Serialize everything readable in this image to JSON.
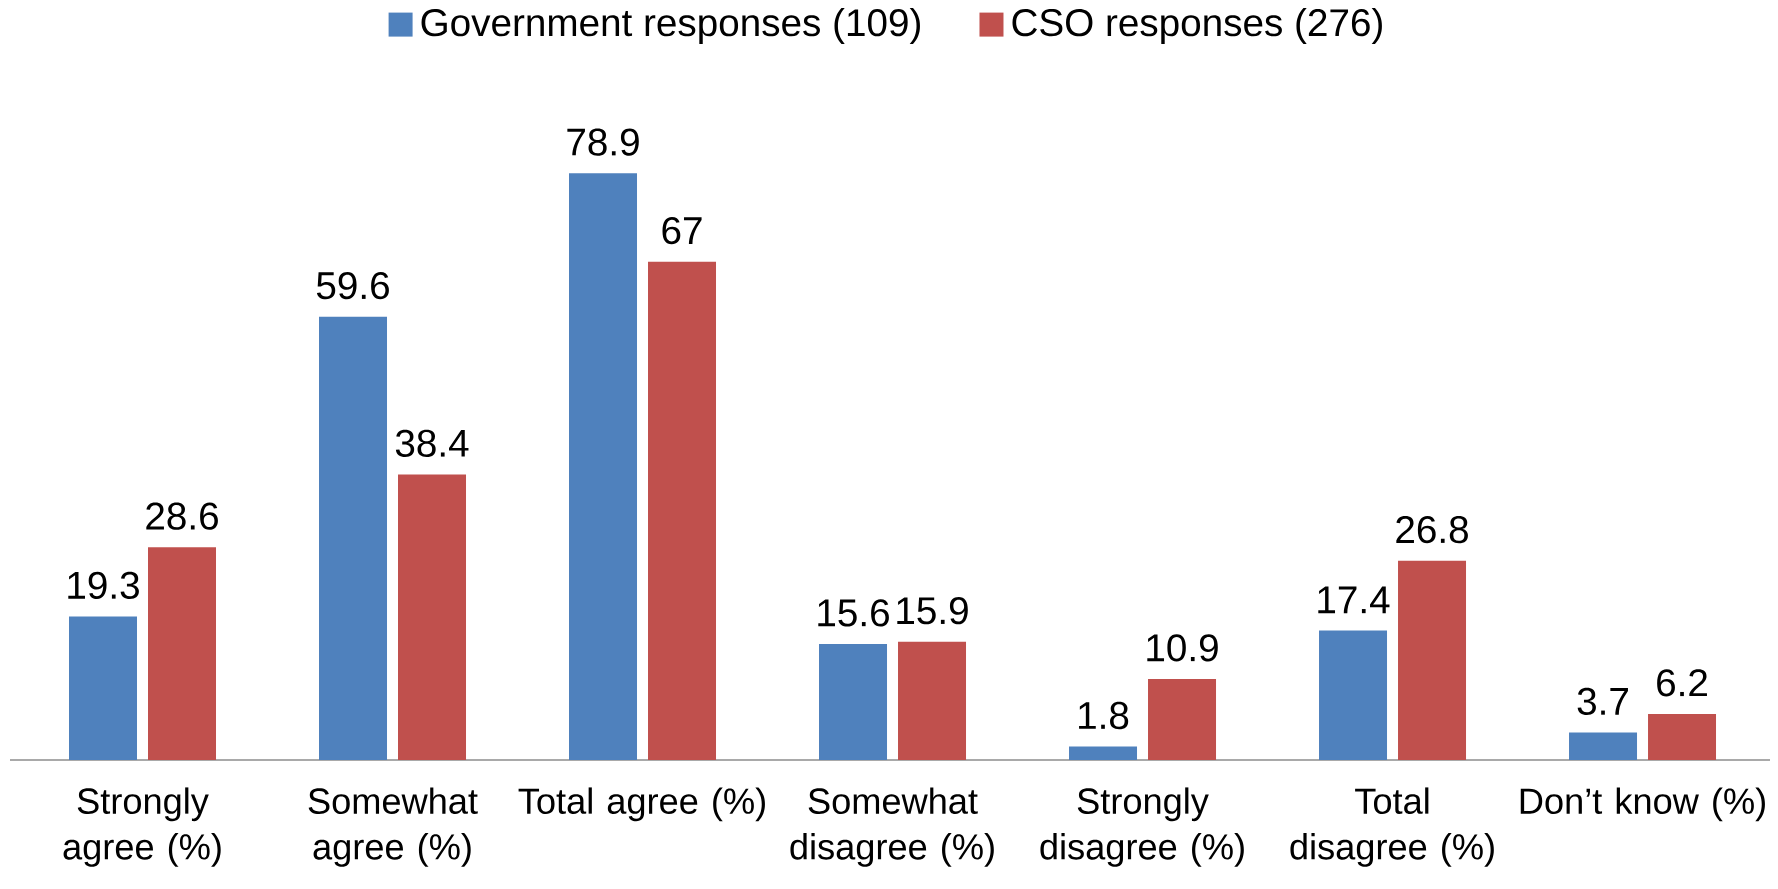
{
  "chart_data": {
    "type": "bar",
    "categories": [
      "Strongly agree (%)",
      "Somewhat agree (%)",
      "Total agree (%)",
      "Somewhat disagree (%)",
      "Strongly disagree (%)",
      "Total disagree (%)",
      "Don’t know (%)"
    ],
    "series": [
      {
        "name": "Government responses (109)",
        "color": "#4f81bd",
        "values": [
          19.3,
          59.6,
          78.9,
          15.6,
          1.8,
          17.4,
          3.7
        ]
      },
      {
        "name": "CSO responses (276)",
        "color": "#c0504d",
        "values": [
          28.6,
          38.4,
          67,
          15.9,
          10.9,
          26.8,
          6.2
        ]
      }
    ],
    "data_labels": true,
    "legend": "top"
  }
}
